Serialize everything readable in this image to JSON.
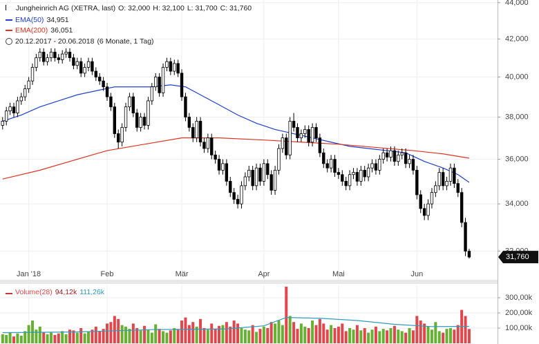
{
  "chart_data": {
    "type": "candlestick",
    "title": "Jungheinrich AG (XETRA, last)",
    "ohlc": [
      "O: 32,000",
      "H: 32,100",
      "L: 31,700",
      "C: 31,760"
    ],
    "period": "20.12.2017 - 20.06.2018",
    "period_note": "(6 Monate, 1 Tag)",
    "last_label": "31,760",
    "log_scale": true,
    "grid": true,
    "up_color": "#ffffff",
    "down_color": "#000000",
    "xlim": [
      -0.7,
      132.6
    ],
    "xticks": [
      {
        "value": 7,
        "label": "Jan '18"
      },
      {
        "value": 28,
        "label": "Feb"
      },
      {
        "value": 48,
        "label": "Mär"
      },
      {
        "value": 70,
        "label": "Apr"
      },
      {
        "value": 90,
        "label": "Mai"
      },
      {
        "value": 111,
        "label": "Jun"
      }
    ],
    "ylim": [
      30.85,
      44.15
    ],
    "yticks": [
      {
        "value": 32,
        "label": "32,000"
      },
      {
        "value": 34,
        "label": "34,000"
      },
      {
        "value": 36,
        "label": "36,000"
      },
      {
        "value": 38,
        "label": "38,000"
      },
      {
        "value": 40,
        "label": "40,000"
      },
      {
        "value": 42,
        "label": "42,000"
      },
      {
        "value": 44,
        "label": "44,000"
      }
    ],
    "x": [
      0,
      1,
      2,
      3,
      4,
      5,
      6,
      7,
      8,
      9,
      10,
      11,
      12,
      13,
      14,
      15,
      16,
      17,
      18,
      19,
      20,
      21,
      22,
      23,
      24,
      25,
      26,
      27,
      28,
      29,
      30,
      31,
      32,
      33,
      34,
      35,
      36,
      37,
      38,
      39,
      40,
      41,
      42,
      43,
      44,
      45,
      46,
      47,
      48,
      49,
      50,
      51,
      52,
      53,
      54,
      55,
      56,
      57,
      58,
      59,
      60,
      61,
      62,
      63,
      64,
      65,
      66,
      67,
      68,
      69,
      70,
      71,
      72,
      73,
      74,
      75,
      76,
      77,
      78,
      79,
      80,
      81,
      82,
      83,
      84,
      85,
      86,
      87,
      88,
      89,
      90,
      91,
      92,
      93,
      94,
      95,
      96,
      97,
      98,
      99,
      100,
      101,
      102,
      103,
      104,
      105,
      106,
      107,
      108,
      109,
      110,
      111,
      112,
      113,
      114,
      115,
      116,
      117,
      118,
      119,
      120,
      121,
      122,
      123,
      124,
      125
    ],
    "candles": [
      [
        37.6,
        38.0,
        37.4,
        37.8
      ],
      [
        37.8,
        38.5,
        37.6,
        38.3
      ],
      [
        38.3,
        38.7,
        38.1,
        38.5
      ],
      [
        38.5,
        38.7,
        38.0,
        38.2
      ],
      [
        38.2,
        39.0,
        38.0,
        38.8
      ],
      [
        38.8,
        39.2,
        38.6,
        39.0
      ],
      [
        39.0,
        39.6,
        38.8,
        39.4
      ],
      [
        39.4,
        40.0,
        39.2,
        39.8
      ],
      [
        39.8,
        40.7,
        39.6,
        40.5
      ],
      [
        40.5,
        41.2,
        40.3,
        41.0
      ],
      [
        41.0,
        41.5,
        40.8,
        41.3
      ],
      [
        41.3,
        41.5,
        40.6,
        40.8
      ],
      [
        40.8,
        41.2,
        40.6,
        41.0
      ],
      [
        41.0,
        41.5,
        40.8,
        41.3
      ],
      [
        41.3,
        41.5,
        40.8,
        41.0
      ],
      [
        41.0,
        41.2,
        40.7,
        40.9
      ],
      [
        40.9,
        41.4,
        40.7,
        41.2
      ],
      [
        41.2,
        41.5,
        41.0,
        41.3
      ],
      [
        41.3,
        41.5,
        40.8,
        41.0
      ],
      [
        41.0,
        41.2,
        40.4,
        40.6
      ],
      [
        40.6,
        41.0,
        40.4,
        40.8
      ],
      [
        40.8,
        41.0,
        40.0,
        40.2
      ],
      [
        40.2,
        40.7,
        40.0,
        40.5
      ],
      [
        40.5,
        41.0,
        40.3,
        40.8
      ],
      [
        40.8,
        41.0,
        40.1,
        40.3
      ],
      [
        40.3,
        40.5,
        39.8,
        40.0
      ],
      [
        40.0,
        40.2,
        39.6,
        39.8
      ],
      [
        39.8,
        40.0,
        39.3,
        39.5
      ],
      [
        39.5,
        39.7,
        38.8,
        39.0
      ],
      [
        39.0,
        39.2,
        38.3,
        38.5
      ],
      [
        38.5,
        38.7,
        37.0,
        37.2
      ],
      [
        37.2,
        37.4,
        36.5,
        36.8
      ],
      [
        36.8,
        37.7,
        36.6,
        37.5
      ],
      [
        37.5,
        38.7,
        37.3,
        38.5
      ],
      [
        38.5,
        39.2,
        38.3,
        39.0
      ],
      [
        39.0,
        39.2,
        38.0,
        38.2
      ],
      [
        38.2,
        38.4,
        37.3,
        37.5
      ],
      [
        37.5,
        38.2,
        37.3,
        38.0
      ],
      [
        38.0,
        38.2,
        37.4,
        37.6
      ],
      [
        37.6,
        39.0,
        37.4,
        38.8
      ],
      [
        38.8,
        39.7,
        38.6,
        39.5
      ],
      [
        39.5,
        40.2,
        39.3,
        40.0
      ],
      [
        40.0,
        40.2,
        39.0,
        39.2
      ],
      [
        39.2,
        40.7,
        39.0,
        40.5
      ],
      [
        40.5,
        41.0,
        40.3,
        40.8
      ],
      [
        40.8,
        41.0,
        40.1,
        40.3
      ],
      [
        40.3,
        40.9,
        40.1,
        40.7
      ],
      [
        40.7,
        40.9,
        40.0,
        40.2
      ],
      [
        40.2,
        40.4,
        38.8,
        39.0
      ],
      [
        39.0,
        39.2,
        37.8,
        38.0
      ],
      [
        38.0,
        38.2,
        37.3,
        37.5
      ],
      [
        37.5,
        37.7,
        36.8,
        37.0
      ],
      [
        37.0,
        38.0,
        36.8,
        37.8
      ],
      [
        37.8,
        38.0,
        36.6,
        36.8
      ],
      [
        36.8,
        37.0,
        36.3,
        36.5
      ],
      [
        36.5,
        37.2,
        36.3,
        37.0
      ],
      [
        37.0,
        37.2,
        36.0,
        36.2
      ],
      [
        36.2,
        36.4,
        35.8,
        36.0
      ],
      [
        36.0,
        36.2,
        35.3,
        35.5
      ],
      [
        35.5,
        36.0,
        35.3,
        35.8
      ],
      [
        35.8,
        36.0,
        34.8,
        35.0
      ],
      [
        35.0,
        35.2,
        34.3,
        34.5
      ],
      [
        34.5,
        34.7,
        34.0,
        34.2
      ],
      [
        34.2,
        34.4,
        33.8,
        34.0
      ],
      [
        34.0,
        35.0,
        33.8,
        34.8
      ],
      [
        34.8,
        35.4,
        34.6,
        35.2
      ],
      [
        35.2,
        35.7,
        35.0,
        35.5
      ],
      [
        35.5,
        35.7,
        34.6,
        34.8
      ],
      [
        34.8,
        35.8,
        34.6,
        35.6
      ],
      [
        35.6,
        35.8,
        34.8,
        35.0
      ],
      [
        35.0,
        36.0,
        34.8,
        35.8
      ],
      [
        35.8,
        36.0,
        35.1,
        35.3
      ],
      [
        35.3,
        35.5,
        34.4,
        34.6
      ],
      [
        34.6,
        35.7,
        34.4,
        35.5
      ],
      [
        35.5,
        36.7,
        35.3,
        36.5
      ],
      [
        36.5,
        37.2,
        36.3,
        37.0
      ],
      [
        37.0,
        37.2,
        36.0,
        36.2
      ],
      [
        36.2,
        38.0,
        36.0,
        37.8
      ],
      [
        37.8,
        38.2,
        37.3,
        37.5
      ],
      [
        37.5,
        37.7,
        36.8,
        37.0
      ],
      [
        37.0,
        37.4,
        36.8,
        37.2
      ],
      [
        37.2,
        37.6,
        37.0,
        37.4
      ],
      [
        37.4,
        37.6,
        36.6,
        36.8
      ],
      [
        36.8,
        37.7,
        36.6,
        37.5
      ],
      [
        37.5,
        37.7,
        36.8,
        37.0
      ],
      [
        37.0,
        37.2,
        36.1,
        36.3
      ],
      [
        36.3,
        36.5,
        35.6,
        35.8
      ],
      [
        35.8,
        36.0,
        35.4,
        35.6
      ],
      [
        35.6,
        36.2,
        35.4,
        36.0
      ],
      [
        36.0,
        36.2,
        35.2,
        35.4
      ],
      [
        35.4,
        35.6,
        35.1,
        35.3
      ],
      [
        35.3,
        35.5,
        34.8,
        35.0
      ],
      [
        35.0,
        35.2,
        34.6,
        34.8
      ],
      [
        34.8,
        35.5,
        34.6,
        35.3
      ],
      [
        35.3,
        35.6,
        35.1,
        35.4
      ],
      [
        35.4,
        35.6,
        34.8,
        35.0
      ],
      [
        35.0,
        35.7,
        34.8,
        35.5
      ],
      [
        35.5,
        35.7,
        35.0,
        35.2
      ],
      [
        35.2,
        35.8,
        35.0,
        35.6
      ],
      [
        35.6,
        36.0,
        35.4,
        35.8
      ],
      [
        35.8,
        36.0,
        35.3,
        35.5
      ],
      [
        35.5,
        36.2,
        35.3,
        36.0
      ],
      [
        36.0,
        36.5,
        35.8,
        36.3
      ],
      [
        36.3,
        36.5,
        35.9,
        36.1
      ],
      [
        36.1,
        36.6,
        35.9,
        36.4
      ],
      [
        36.4,
        36.6,
        35.7,
        35.9
      ],
      [
        35.9,
        36.4,
        35.7,
        36.2
      ],
      [
        36.2,
        36.5,
        36.0,
        36.3
      ],
      [
        36.3,
        36.5,
        35.6,
        35.8
      ],
      [
        35.8,
        36.2,
        35.6,
        36.0
      ],
      [
        36.0,
        36.2,
        35.3,
        35.5
      ],
      [
        35.5,
        35.7,
        34.2,
        34.4
      ],
      [
        34.4,
        34.6,
        33.6,
        33.8
      ],
      [
        33.8,
        34.0,
        33.3,
        33.5
      ],
      [
        33.5,
        34.2,
        33.3,
        34.0
      ],
      [
        34.0,
        34.7,
        33.8,
        34.5
      ],
      [
        34.5,
        35.0,
        34.3,
        34.8
      ],
      [
        34.8,
        35.6,
        34.6,
        35.4
      ],
      [
        35.4,
        35.6,
        34.6,
        34.8
      ],
      [
        34.8,
        35.2,
        34.6,
        35.0
      ],
      [
        35.0,
        35.8,
        34.8,
        35.6
      ],
      [
        35.6,
        35.8,
        34.7,
        34.9
      ],
      [
        34.9,
        35.1,
        34.3,
        34.5
      ],
      [
        34.5,
        34.7,
        33.0,
        33.2
      ],
      [
        33.2,
        33.4,
        31.8,
        32.0
      ],
      [
        32.0,
        32.1,
        31.7,
        31.76
      ]
    ],
    "series": [
      {
        "name": "EMA(50)",
        "color": "#1f3fcc",
        "value_label": "34,951",
        "x": [
          0,
          5,
          10,
          15,
          20,
          25,
          30,
          35,
          40,
          45,
          49,
          53,
          58,
          63,
          68,
          73,
          78,
          83,
          88,
          93,
          98,
          103,
          108,
          113,
          118,
          122,
          125
        ],
        "values": [
          37.8,
          38.1,
          38.5,
          38.8,
          39.1,
          39.3,
          39.5,
          39.5,
          39.5,
          39.6,
          39.5,
          39.1,
          38.6,
          38.1,
          37.7,
          37.4,
          37.2,
          37.0,
          36.8,
          36.6,
          36.5,
          36.4,
          36.3,
          35.9,
          35.6,
          35.3,
          34.951
        ]
      },
      {
        "name": "EMA(200)",
        "color": "#dd3322",
        "value_label": "36,051",
        "x": [
          0,
          10,
          20,
          28,
          38,
          48,
          58,
          70,
          80,
          90,
          100,
          110,
          118,
          125
        ],
        "values": [
          35.1,
          35.5,
          36.0,
          36.4,
          36.7,
          37.0,
          37.0,
          36.9,
          36.8,
          36.7,
          36.55,
          36.4,
          36.25,
          36.051
        ]
      }
    ],
    "volume": {
      "type": "bar",
      "name": "Volume(28)",
      "value_label": "94,12k",
      "up_color": "#66b032",
      "down_color": "#e0474c",
      "ylim": [
        0,
        382
      ],
      "yticks": [
        {
          "value": 100,
          "label": "100,00k"
        },
        {
          "value": 200,
          "label": "200,00k"
        },
        {
          "value": 300,
          "label": "300,00k"
        }
      ],
      "values": [
        60,
        55,
        70,
        45,
        65,
        50,
        80,
        120,
        150,
        90,
        110,
        75,
        60,
        70,
        55,
        65,
        80,
        60,
        90,
        85,
        70,
        100,
        65,
        75,
        90,
        110,
        80,
        95,
        130,
        140,
        180,
        160,
        120,
        110,
        95,
        130,
        100,
        85,
        115,
        90,
        70,
        125,
        95,
        80,
        70,
        85,
        100,
        90,
        150,
        170,
        120,
        140,
        110,
        160,
        100,
        90,
        130,
        95,
        115,
        120,
        140,
        110,
        150,
        130,
        100,
        90,
        85,
        120,
        75,
        95,
        110,
        100,
        140,
        130,
        150,
        120,
        373,
        180,
        140,
        95,
        130,
        110,
        100,
        150,
        120,
        160,
        130,
        90,
        120,
        100,
        110,
        130,
        80,
        100,
        90,
        120,
        85,
        100,
        70,
        90,
        110,
        80,
        95,
        85,
        100,
        115,
        90,
        80,
        70,
        100,
        85,
        180,
        150,
        130,
        110,
        90,
        140,
        80,
        70,
        95,
        100,
        90,
        120,
        220,
        180,
        94.12
      ],
      "average": {
        "color": "#2f9bbd",
        "value_label": "111,26k",
        "x": [
          0,
          20,
          40,
          60,
          70,
          76,
          85,
          95,
          105,
          115,
          125
        ],
        "values": [
          70,
          75,
          90,
          95,
          115,
          170,
          165,
          150,
          125,
          110,
          111.26
        ]
      }
    }
  }
}
